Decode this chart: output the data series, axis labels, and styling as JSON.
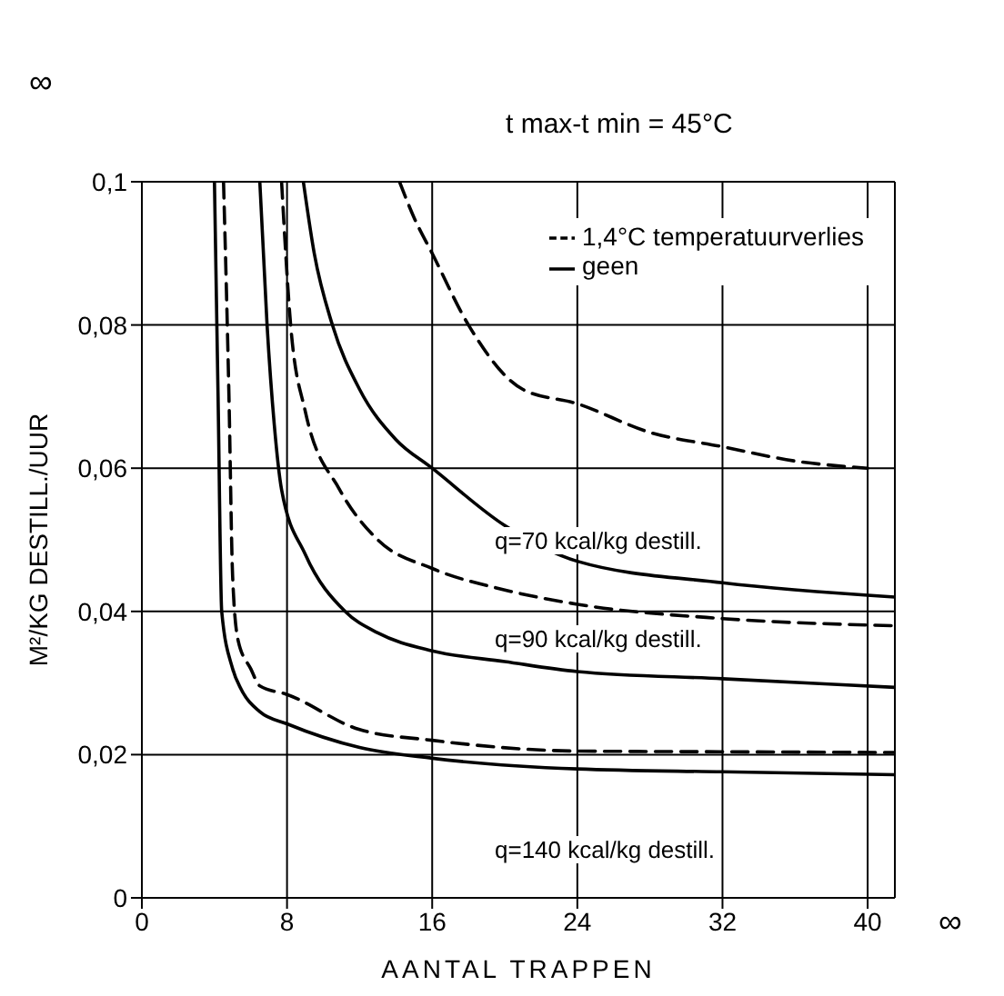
{
  "chart_data": {
    "type": "line",
    "title": "t max-t min = 45°C",
    "xlabel": "AANTAL TRAPPEN",
    "ylabel": "M²/KG DESTILL./UUR",
    "xlim": [
      0,
      41.5
    ],
    "xticks": [
      0,
      8,
      16,
      24,
      32,
      40
    ],
    "ylim": [
      0,
      0.1
    ],
    "yticks": [
      {
        "value": 0,
        "label": "0"
      },
      {
        "value": 0.02,
        "label": "0,02"
      },
      {
        "value": 0.04,
        "label": "0,04"
      },
      {
        "value": 0.06,
        "label": "0,06"
      },
      {
        "value": 0.08,
        "label": "0,08"
      },
      {
        "value": 0.1,
        "label": "0,1"
      }
    ],
    "grid": true,
    "legend": "top right",
    "marker": "none",
    "series": [
      {
        "name": "1,4°C temperatuurverlies",
        "color": "#000000",
        "line_style": "dashed",
        "x": [
          14.2,
          15,
          16,
          18,
          21,
          24,
          28,
          32,
          36,
          40
        ],
        "values": [
          0.1,
          0.095,
          0.09,
          0.08,
          0.071,
          0.069,
          0.065,
          0.063,
          0.061,
          0.06
        ]
      },
      {
        "name": "geen",
        "color": "#000000",
        "line_style": "solid",
        "x": [
          8.9,
          9.5,
          10.5,
          12,
          14,
          16,
          20,
          24,
          32,
          41.5
        ],
        "values": [
          0.1,
          0.09,
          0.08,
          0.071,
          0.064,
          0.06,
          0.052,
          0.047,
          0.044,
          0.042
        ]
      },
      {
        "color": "#000000",
        "line_style": "dashed",
        "x": [
          7.7,
          8.2,
          9,
          10.9,
          13,
          16,
          20,
          24,
          32,
          41.5
        ],
        "values": [
          0.1,
          0.08,
          0.068,
          0.057,
          0.05,
          0.046,
          0.043,
          0.041,
          0.039,
          0.038
        ]
      },
      {
        "color": "#000000",
        "line_style": "solid",
        "x": [
          6.5,
          6.9,
          7.3,
          7.7,
          9,
          11.2,
          13,
          16,
          20,
          24,
          32,
          41.5
        ],
        "values": [
          0.1,
          0.08,
          0.066,
          0.057,
          0.048,
          0.04,
          0.037,
          0.0345,
          0.033,
          0.0316,
          0.0306,
          0.0294
        ]
      },
      {
        "color": "#000000",
        "line_style": "dashed",
        "x": [
          4.5,
          4.8,
          5,
          5.3,
          6,
          6.5,
          8,
          12,
          16,
          24,
          32,
          41.5
        ],
        "values": [
          0.1,
          0.07,
          0.045,
          0.036,
          0.032,
          0.0296,
          0.0284,
          0.0235,
          0.022,
          0.0205,
          0.0204,
          0.0203
        ]
      },
      {
        "color": "#000000",
        "line_style": "solid",
        "x": [
          4.0,
          4.2,
          4.4,
          5,
          5.5,
          6.5,
          8,
          12,
          16,
          24,
          32,
          41.5
        ],
        "values": [
          0.1,
          0.07,
          0.04,
          0.032,
          0.029,
          0.026,
          0.0243,
          0.021,
          0.0195,
          0.018,
          0.0176,
          0.0172
        ]
      }
    ],
    "annotations": [
      "q=70 kcal/kg destill.",
      "q=90 kcal/kg destill.",
      "q=140 kcal/kg destill.",
      "∞",
      "∞"
    ]
  }
}
